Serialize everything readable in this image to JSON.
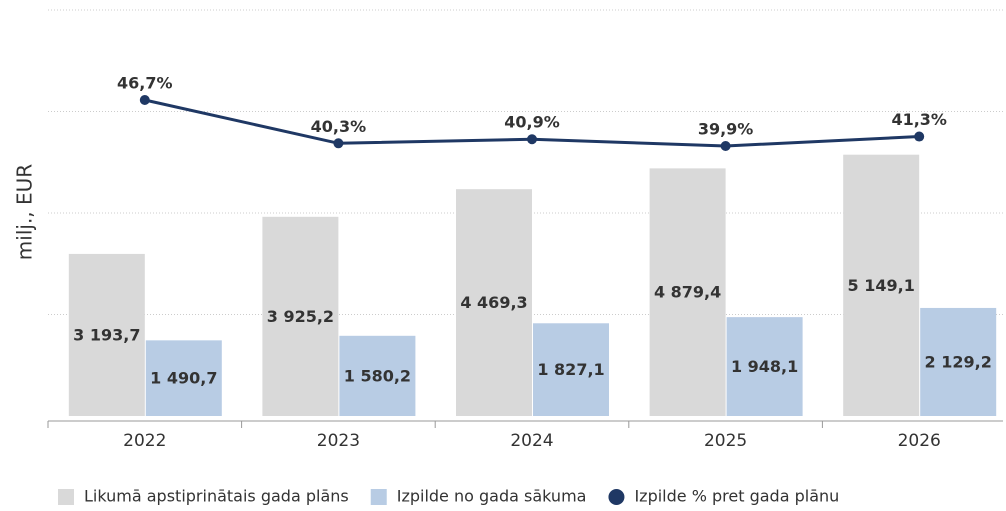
{
  "chart_data": {
    "type": "bar_line",
    "y_label": "milj., EUR",
    "categories": [
      "2022",
      "2023",
      "2024",
      "2025",
      "2026"
    ],
    "series": [
      {
        "name": "Likumā apstiprinātais gada plāns",
        "color": "#d9d9d9",
        "type": "bar",
        "values": [
          3193.7,
          3925.2,
          4469.3,
          4879.4,
          5149.1
        ],
        "value_labels": [
          "3 193,7",
          "3 925,2",
          "4 469,3",
          "4 879,4",
          "5 149,1"
        ]
      },
      {
        "name": "Izpilde no gada sākuma",
        "color": "#b8cce4",
        "type": "bar",
        "values": [
          1490.7,
          1580.2,
          1827.1,
          1948.1,
          2129.2
        ],
        "value_labels": [
          "1 490,7",
          "1 580,2",
          "1 827,1",
          "1 948,1",
          "2 129,2"
        ]
      },
      {
        "name": "Izpilde % pret gada plānu",
        "color": "#1f3864",
        "type": "line",
        "axis": "y2",
        "values": [
          46.7,
          40.3,
          40.9,
          39.9,
          41.3
        ],
        "value_labels": [
          "46,7%",
          "40,3%",
          "40,9%",
          "39,9%",
          "41,3%"
        ]
      }
    ],
    "ylim": [
      0,
      8000
    ],
    "yticks": [
      0,
      2000,
      4000,
      6000,
      8000
    ],
    "y2lim": [
      0,
      60
    ],
    "grid": true,
    "legend": "bottom"
  }
}
